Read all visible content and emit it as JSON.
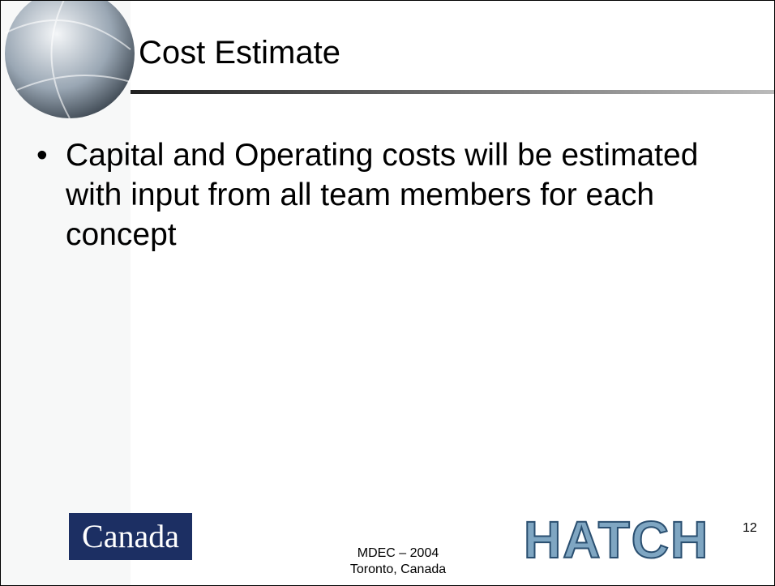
{
  "title": "Cost Estimate",
  "bullets": [
    "Capital and Operating costs will be estimated with input from all team members for each concept"
  ],
  "footer": {
    "line1": "MDEC – 2004",
    "line2": "Toronto, Canada",
    "left_logo": "Canada",
    "right_logo": "HATCH",
    "page_number": "12"
  }
}
